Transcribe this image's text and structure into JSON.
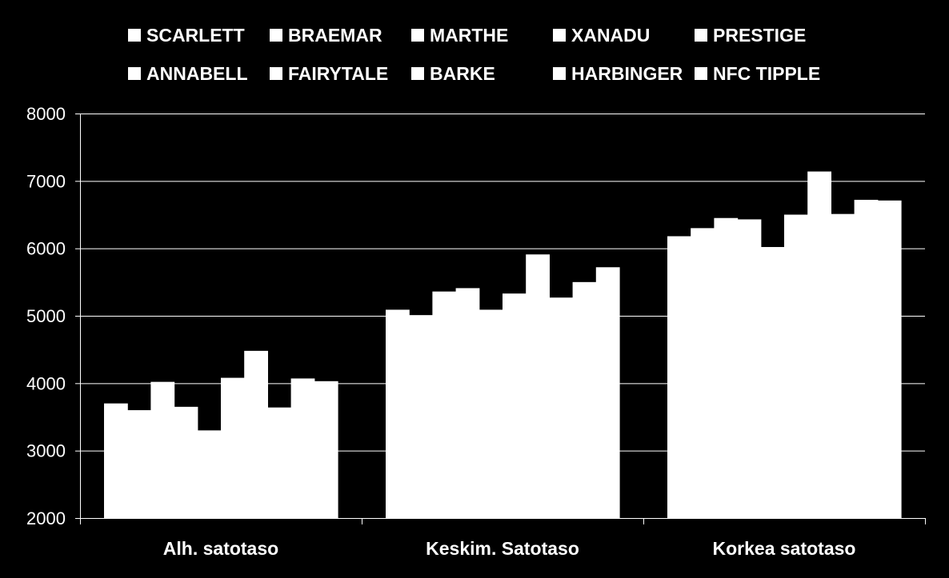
{
  "chart_data": {
    "type": "bar",
    "categories": [
      "Alh. satotaso",
      "Keskim. Satotaso",
      "Korkea satotaso"
    ],
    "series": [
      {
        "name": "SCARLETT",
        "values": [
          3700,
          5090,
          6180
        ]
      },
      {
        "name": "ANNABELL",
        "values": [
          3600,
          5010,
          6300
        ]
      },
      {
        "name": "BRAEMAR",
        "values": [
          4020,
          5360,
          6450
        ]
      },
      {
        "name": "FAIRYTALE",
        "values": [
          3650,
          5410,
          6430
        ]
      },
      {
        "name": "MARTHE",
        "values": [
          3300,
          5090,
          6020
        ]
      },
      {
        "name": "BARKE",
        "values": [
          4080,
          5330,
          6500
        ]
      },
      {
        "name": "XANADU",
        "values": [
          4480,
          5910,
          7140
        ]
      },
      {
        "name": "HARBINGER",
        "values": [
          3640,
          5270,
          6510
        ]
      },
      {
        "name": "PRESTIGE",
        "values": [
          4070,
          5500,
          6720
        ]
      },
      {
        "name": "NFC TIPPLE",
        "values": [
          4030,
          5720,
          6710
        ]
      }
    ],
    "y_ticks": [
      "2000",
      "3000",
      "4000",
      "5000",
      "6000",
      "7000",
      "8000"
    ],
    "ylim": [
      2000,
      8000
    ],
    "grid": true,
    "legend_position": "top",
    "colors": {
      "background": "#000000",
      "bars": "#ffffff",
      "text": "#ffffff",
      "grid": "#ffffff"
    }
  }
}
